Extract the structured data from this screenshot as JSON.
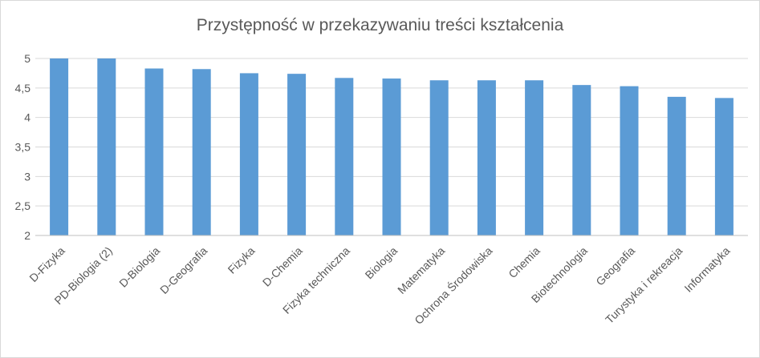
{
  "chart_data": {
    "type": "bar",
    "title": "Przystępność w przekazywaniu treści kształcenia",
    "xlabel": "",
    "ylabel": "",
    "ylim": [
      2,
      5
    ],
    "yticks": [
      "2",
      "2,5",
      "3",
      "3,5",
      "4",
      "4,5",
      "5"
    ],
    "grid": true,
    "legend": "none",
    "categories": [
      "D-Fizyka",
      "PD-Biologia (2)",
      "D-Biologia",
      "D-Geografia",
      "Fizyka",
      "D-Chemia",
      "Fizyka techniczna",
      "Biologia",
      "Matematyka",
      "Ochrona Środowiska",
      "Chemia",
      "Biotechnologia",
      "Geografia",
      "Turystyka i rekreacja",
      "Informatyka"
    ],
    "values": [
      5.0,
      5.0,
      4.83,
      4.82,
      4.75,
      4.74,
      4.67,
      4.66,
      4.63,
      4.63,
      4.63,
      4.55,
      4.53,
      4.35,
      4.33
    ],
    "colors": {
      "bar": "#5b9bd5",
      "grid": "#d9d9d9",
      "axis": "#bfbfbf",
      "text": "#595959"
    }
  }
}
